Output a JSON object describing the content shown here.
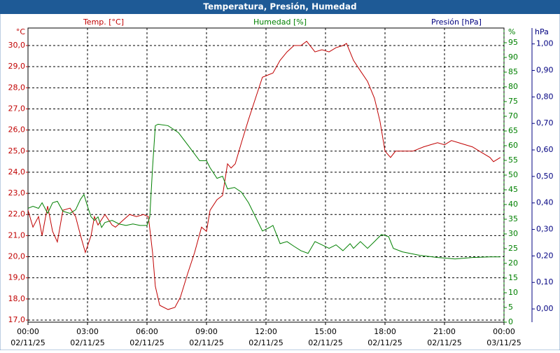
{
  "chart_data": {
    "type": "line",
    "title": "Temperatura, Presión, Humedad",
    "y_unit": "°C",
    "y_label": "Temp. [°C]",
    "y2_label": "Humedad [%]",
    "y2_unit": "%",
    "y3_label": "Presión [hPa]",
    "y3_unit": "hPa",
    "grid": true,
    "xlim": [
      0,
      24
    ],
    "xticks": [
      {
        "value": 0,
        "label": "00:00"
      },
      {
        "value": 3,
        "label": "03:00"
      },
      {
        "value": 6,
        "label": "06:00"
      },
      {
        "value": 9,
        "label": "09:00"
      },
      {
        "value": 12,
        "label": "12:00"
      },
      {
        "value": 15,
        "label": "15:00"
      },
      {
        "value": 18,
        "label": "18:00"
      },
      {
        "value": 21,
        "label": "21:00"
      },
      {
        "value": 24,
        "label": "00:00"
      }
    ],
    "xtick_dates": [
      "02/11/25",
      "02/11/25",
      "02/11/25",
      "02/11/25",
      "02/11/25",
      "02/11/25",
      "02/11/25",
      "02/11/25",
      "03/11/25"
    ],
    "ylim": [
      16.9,
      30.83
    ],
    "yticks": [
      {
        "value": 17,
        "label": "17,0"
      },
      {
        "value": 18,
        "label": "18,0"
      },
      {
        "value": 19,
        "label": "19,0"
      },
      {
        "value": 20,
        "label": "20,0"
      },
      {
        "value": 21,
        "label": "21,0"
      },
      {
        "value": 22,
        "label": "22,0"
      },
      {
        "value": 23,
        "label": "23,0"
      },
      {
        "value": 24,
        "label": "24,0"
      },
      {
        "value": 25,
        "label": "25,0"
      },
      {
        "value": 26,
        "label": "26,0"
      },
      {
        "value": 27,
        "label": "27,0"
      },
      {
        "value": 28,
        "label": "28,0"
      },
      {
        "value": 29,
        "label": "29,0"
      },
      {
        "value": 30,
        "label": "30,0"
      }
    ],
    "y2lim": [
      0,
      100
    ],
    "y2ticks": [
      0,
      5,
      10,
      15,
      20,
      25,
      30,
      35,
      40,
      45,
      50,
      55,
      60,
      65,
      70,
      75,
      80,
      85,
      90,
      95
    ],
    "y3lim": [
      -0.05,
      1.06
    ],
    "y3ticks": [
      {
        "value": 0,
        "label": "0,00"
      },
      {
        "value": 0.1,
        "label": "0,10"
      },
      {
        "value": 0.2,
        "label": "0,20"
      },
      {
        "value": 0.3,
        "label": "0,30"
      },
      {
        "value": 0.4,
        "label": "0,40"
      },
      {
        "value": 0.5,
        "label": "0,50"
      },
      {
        "value": 0.6,
        "label": "0,60"
      },
      {
        "value": 0.7,
        "label": "0,70"
      },
      {
        "value": 0.8,
        "label": "0,80"
      },
      {
        "value": 0.9,
        "label": "0,90"
      },
      {
        "value": 1,
        "label": "1,00"
      }
    ],
    "y_color": "#c00000",
    "y2_color": "#008000",
    "y3_color": "#000080",
    "series": [
      {
        "name": "Temp. [°C]",
        "color": "#c00000",
        "axis": "y",
        "x": [
          0,
          0.25,
          0.53,
          0.71,
          0.99,
          1.24,
          1.48,
          1.76,
          2.12,
          2.4,
          2.65,
          2.89,
          3.18,
          3.35,
          3.53,
          3.88,
          4.24,
          4.41,
          4.76,
          5.12,
          5.47,
          5.82,
          6.07,
          6.28,
          6.42,
          6.64,
          7.06,
          7.41,
          7.69,
          8.05,
          8.4,
          8.75,
          9.0,
          9.18,
          9.53,
          9.81,
          10.06,
          10.24,
          10.45,
          10.76,
          11.12,
          11.47,
          11.82,
          12.35,
          12.71,
          13.06,
          13.41,
          13.76,
          14.05,
          14.47,
          14.82,
          15.18,
          15.53,
          15.88,
          16.06,
          16.41,
          16.76,
          17.12,
          17.47,
          17.75,
          18.0,
          18.28,
          18.53,
          18.88,
          19.41,
          19.94,
          20.29,
          20.65,
          21.0,
          21.35,
          21.71,
          22.06,
          22.41,
          22.76,
          23.29,
          23.47,
          23.82
        ],
        "values": [
          22.2,
          21.4,
          21.9,
          21.0,
          22.4,
          21.2,
          20.7,
          22.2,
          22.3,
          21.9,
          21.0,
          20.2,
          21.0,
          21.9,
          21.5,
          22.0,
          21.5,
          21.4,
          21.7,
          22.0,
          21.9,
          22.0,
          21.9,
          20.2,
          18.6,
          17.7,
          17.5,
          17.6,
          18.1,
          19.2,
          20.2,
          21.4,
          21.2,
          22.2,
          22.7,
          22.9,
          24.4,
          24.2,
          24.4,
          25.4,
          26.5,
          27.5,
          28.5,
          28.7,
          29.3,
          29.7,
          30.0,
          30.0,
          30.2,
          29.7,
          29.8,
          29.7,
          29.9,
          30.0,
          30.1,
          29.3,
          28.8,
          28.3,
          27.5,
          26.4,
          25.0,
          24.7,
          25.0,
          25.0,
          25.0,
          25.2,
          25.3,
          25.4,
          25.3,
          25.5,
          25.4,
          25.3,
          25.2,
          25.0,
          24.7,
          24.5,
          24.7
        ]
      },
      {
        "name": "Humedad [%]",
        "color": "#008000",
        "axis": "y2",
        "x": [
          0,
          0.25,
          0.53,
          0.71,
          0.99,
          1.24,
          1.48,
          1.76,
          2.12,
          2.4,
          2.65,
          2.82,
          3.0,
          3.18,
          3.35,
          3.53,
          3.71,
          3.88,
          4.24,
          4.59,
          4.94,
          5.29,
          5.65,
          6.0,
          6.14,
          6.28,
          6.42,
          6.56,
          7.06,
          7.59,
          8.12,
          8.65,
          9.0,
          9.18,
          9.53,
          9.81,
          10.06,
          10.41,
          10.76,
          11.12,
          11.47,
          11.82,
          12.18,
          12.35,
          12.71,
          13.06,
          13.41,
          13.76,
          14.12,
          14.47,
          14.82,
          15.18,
          15.53,
          15.88,
          16.24,
          16.41,
          16.76,
          17.12,
          17.47,
          17.82,
          18.18,
          18.42,
          18.88,
          19.76,
          20.65,
          21.53,
          22.41,
          23.29,
          23.82
        ],
        "values": [
          38.7,
          39.4,
          38.7,
          40.6,
          37.0,
          40.6,
          41.1,
          37.7,
          37.0,
          38.2,
          41.8,
          43.4,
          39.4,
          35.8,
          34.6,
          35.8,
          32.2,
          33.9,
          34.6,
          33.4,
          32.9,
          33.4,
          32.9,
          32.9,
          35.8,
          52.5,
          66.8,
          67.3,
          66.8,
          64.4,
          59.7,
          54.9,
          54.9,
          52.5,
          48.9,
          49.6,
          45.3,
          45.8,
          44.2,
          40.6,
          35.8,
          31.0,
          32.2,
          32.9,
          26.7,
          27.4,
          25.8,
          24.3,
          23.4,
          27.4,
          26.3,
          25.1,
          26.3,
          24.3,
          26.7,
          25.1,
          27.4,
          25.1,
          27.4,
          29.8,
          29.1,
          25.1,
          23.9,
          22.7,
          22.0,
          21.5,
          22.0,
          22.2,
          22.2
        ]
      }
    ]
  }
}
